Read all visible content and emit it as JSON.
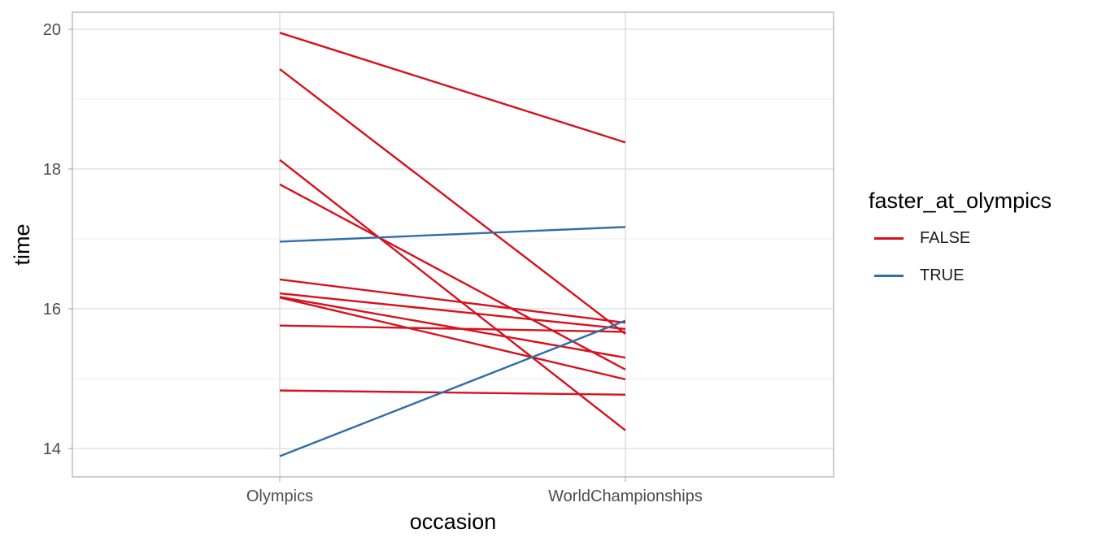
{
  "chart_data": {
    "type": "line",
    "title": "",
    "xlabel": "occasion",
    "ylabel": "time",
    "categories": [
      "Olympics",
      "WorldChampionships"
    ],
    "y_ticks": [
      14,
      16,
      18,
      20
    ],
    "y_minor_ticks": [
      15,
      17,
      19
    ],
    "ylim": [
      13.67,
      20.23
    ],
    "grid": true,
    "legend": {
      "title": "faster_at_olympics",
      "position": "right",
      "entries": [
        {
          "label": "FALSE",
          "color": "#E41A1C"
        },
        {
          "label": "TRUE",
          "color": "#377EB8"
        }
      ]
    },
    "series": [
      {
        "group": "FALSE",
        "values": [
          19.95,
          18.38
        ]
      },
      {
        "group": "FALSE",
        "values": [
          19.43,
          15.64
        ]
      },
      {
        "group": "FALSE",
        "values": [
          18.13,
          14.26
        ]
      },
      {
        "group": "FALSE",
        "values": [
          17.78,
          15.13
        ]
      },
      {
        "group": "FALSE",
        "values": [
          16.42,
          15.8
        ]
      },
      {
        "group": "FALSE",
        "values": [
          16.22,
          15.71
        ]
      },
      {
        "group": "FALSE",
        "values": [
          16.17,
          15.3
        ]
      },
      {
        "group": "FALSE",
        "values": [
          16.16,
          14.99
        ]
      },
      {
        "group": "FALSE",
        "values": [
          15.76,
          15.67
        ]
      },
      {
        "group": "FALSE",
        "values": [
          14.83,
          14.77
        ]
      },
      {
        "group": "TRUE",
        "values": [
          16.96,
          17.17
        ]
      },
      {
        "group": "TRUE",
        "values": [
          13.89,
          15.83
        ]
      }
    ]
  },
  "colors": {
    "FALSE": "#D7111E",
    "TRUE": "#2F6DAB"
  }
}
